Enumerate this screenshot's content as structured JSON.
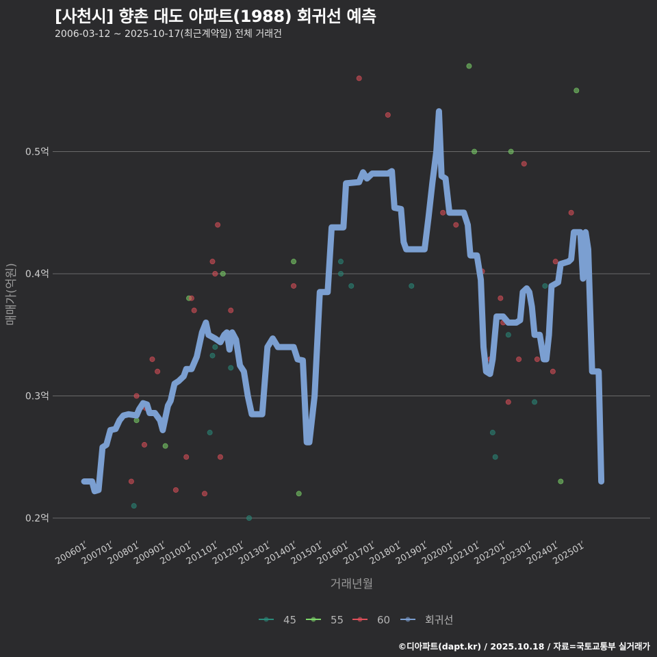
{
  "header": {
    "title": "[사천시] 향촌 대도 아파트(1988) 회귀선 예측",
    "subtitle": "2006-03-12 ~ 2025-10-17(최근계약일) 전체 거래건"
  },
  "caption": "©디아파트(dapt.kr) / 2025.10.18 / 자료=국토교통부 실거래가",
  "colors": {
    "background": "#2b2b2d",
    "grid": "#6a6a6a",
    "s45": "#2a8a7a",
    "s55": "#7ed66a",
    "s60": "#e0505a",
    "regression": "#7b9fd1"
  },
  "chart_data": {
    "type": "line",
    "title": "[사천시] 향촌 대도 아파트(1988) 회귀선 예측",
    "subtitle": "2006-03-12 ~ 2025-10-17(최근계약일) 전체 거래건",
    "xlabel": "거래년월",
    "ylabel": "매매가(억원)",
    "ylim": [
      0.18,
      0.58
    ],
    "yticks": [
      0.2,
      0.3,
      0.4,
      0.5
    ],
    "ytick_labels": [
      "0.2억",
      "0.3억",
      "0.4억",
      "0.5억"
    ],
    "xticks": [
      "200601",
      "200701",
      "200801",
      "200901",
      "201001",
      "201101",
      "201201",
      "201301",
      "201401",
      "201501",
      "201601",
      "201701",
      "201801",
      "201901",
      "202001",
      "202101",
      "202201",
      "202301",
      "202401",
      "202501"
    ],
    "legend": [
      "45",
      "55",
      "60",
      "회귀선"
    ],
    "legend_position": "bottom",
    "grid": true,
    "series": [
      {
        "name": "45",
        "type": "scatter",
        "points": [
          [
            2007.9,
            0.21
          ],
          [
            2010.8,
            0.27
          ],
          [
            2010.9,
            0.333
          ],
          [
            2011.0,
            0.34
          ],
          [
            2011.6,
            0.323
          ],
          [
            2012.3,
            0.2
          ],
          [
            2015.8,
            0.41
          ],
          [
            2015.8,
            0.4
          ],
          [
            2016.2,
            0.39
          ],
          [
            2018.5,
            0.39
          ],
          [
            2021.6,
            0.27
          ],
          [
            2021.7,
            0.25
          ],
          [
            2022.2,
            0.35
          ],
          [
            2023.2,
            0.295
          ],
          [
            2023.6,
            0.39
          ]
        ]
      },
      {
        "name": "55",
        "type": "scatter",
        "points": [
          [
            2008.0,
            0.28
          ],
          [
            2009.1,
            0.259
          ],
          [
            2010.0,
            0.38
          ],
          [
            2011.3,
            0.4
          ],
          [
            2014.0,
            0.41
          ],
          [
            2014.2,
            0.22
          ],
          [
            2020.7,
            0.57
          ],
          [
            2020.9,
            0.5
          ],
          [
            2022.3,
            0.5
          ],
          [
            2024.2,
            0.23
          ],
          [
            2024.8,
            0.55
          ]
        ]
      },
      {
        "name": "60",
        "type": "scatter",
        "points": [
          [
            2007.8,
            0.23
          ],
          [
            2008.0,
            0.3
          ],
          [
            2008.3,
            0.26
          ],
          [
            2008.35,
            0.29
          ],
          [
            2008.6,
            0.33
          ],
          [
            2008.8,
            0.32
          ],
          [
            2009.5,
            0.223
          ],
          [
            2009.9,
            0.25
          ],
          [
            2010.1,
            0.38
          ],
          [
            2010.2,
            0.37
          ],
          [
            2010.6,
            0.22
          ],
          [
            2010.9,
            0.41
          ],
          [
            2011.0,
            0.4
          ],
          [
            2011.1,
            0.44
          ],
          [
            2011.2,
            0.25
          ],
          [
            2011.6,
            0.37
          ],
          [
            2014.0,
            0.39
          ],
          [
            2016.5,
            0.56
          ],
          [
            2017.6,
            0.53
          ],
          [
            2019.7,
            0.45
          ],
          [
            2020.2,
            0.44
          ],
          [
            2021.2,
            0.402
          ],
          [
            2021.5,
            0.33
          ],
          [
            2021.9,
            0.38
          ],
          [
            2022.0,
            0.36
          ],
          [
            2022.2,
            0.295
          ],
          [
            2022.6,
            0.33
          ],
          [
            2022.8,
            0.49
          ],
          [
            2023.3,
            0.33
          ],
          [
            2023.9,
            0.32
          ],
          [
            2024.0,
            0.41
          ],
          [
            2024.6,
            0.45
          ]
        ]
      },
      {
        "name": "회귀선",
        "type": "line",
        "points": [
          [
            2006.0,
            0.23
          ],
          [
            2006.3,
            0.23
          ],
          [
            2006.4,
            0.222
          ],
          [
            2006.55,
            0.223
          ],
          [
            2006.7,
            0.258
          ],
          [
            2006.85,
            0.26
          ],
          [
            2007.0,
            0.272
          ],
          [
            2007.2,
            0.273
          ],
          [
            2007.35,
            0.28
          ],
          [
            2007.5,
            0.284
          ],
          [
            2007.7,
            0.285
          ],
          [
            2008.0,
            0.284
          ],
          [
            2008.1,
            0.289
          ],
          [
            2008.25,
            0.294
          ],
          [
            2008.4,
            0.293
          ],
          [
            2008.5,
            0.286
          ],
          [
            2008.7,
            0.286
          ],
          [
            2008.9,
            0.28
          ],
          [
            2009.0,
            0.272
          ],
          [
            2009.1,
            0.282
          ],
          [
            2009.2,
            0.292
          ],
          [
            2009.3,
            0.296
          ],
          [
            2009.45,
            0.31
          ],
          [
            2009.6,
            0.312
          ],
          [
            2009.8,
            0.316
          ],
          [
            2009.9,
            0.322
          ],
          [
            2010.1,
            0.322
          ],
          [
            2010.3,
            0.332
          ],
          [
            2010.5,
            0.352
          ],
          [
            2010.65,
            0.36
          ],
          [
            2010.75,
            0.35
          ],
          [
            2011.0,
            0.347
          ],
          [
            2011.2,
            0.344
          ],
          [
            2011.35,
            0.35
          ],
          [
            2011.45,
            0.352
          ],
          [
            2011.55,
            0.338
          ],
          [
            2011.65,
            0.352
          ],
          [
            2011.8,
            0.346
          ],
          [
            2011.95,
            0.325
          ],
          [
            2012.1,
            0.32
          ],
          [
            2012.25,
            0.3
          ],
          [
            2012.4,
            0.285
          ],
          [
            2012.8,
            0.285
          ],
          [
            2013.0,
            0.34
          ],
          [
            2013.2,
            0.347
          ],
          [
            2013.4,
            0.34
          ],
          [
            2014.0,
            0.34
          ],
          [
            2014.15,
            0.33
          ],
          [
            2014.35,
            0.329
          ],
          [
            2014.5,
            0.262
          ],
          [
            2014.6,
            0.262
          ],
          [
            2014.8,
            0.3
          ],
          [
            2015.0,
            0.385
          ],
          [
            2015.3,
            0.385
          ],
          [
            2015.45,
            0.438
          ],
          [
            2015.9,
            0.438
          ],
          [
            2016.0,
            0.474
          ],
          [
            2016.5,
            0.475
          ],
          [
            2016.65,
            0.483
          ],
          [
            2016.8,
            0.478
          ],
          [
            2017.0,
            0.482
          ],
          [
            2017.6,
            0.482
          ],
          [
            2017.75,
            0.484
          ],
          [
            2017.85,
            0.454
          ],
          [
            2018.1,
            0.453
          ],
          [
            2018.2,
            0.426
          ],
          [
            2018.3,
            0.42
          ],
          [
            2019.0,
            0.42
          ],
          [
            2019.15,
            0.446
          ],
          [
            2019.3,
            0.475
          ],
          [
            2019.45,
            0.5
          ],
          [
            2019.55,
            0.533
          ],
          [
            2019.65,
            0.48
          ],
          [
            2019.8,
            0.478
          ],
          [
            2019.95,
            0.45
          ],
          [
            2020.5,
            0.45
          ],
          [
            2020.65,
            0.44
          ],
          [
            2020.75,
            0.415
          ],
          [
            2021.0,
            0.415
          ],
          [
            2021.15,
            0.395
          ],
          [
            2021.25,
            0.34
          ],
          [
            2021.35,
            0.32
          ],
          [
            2021.5,
            0.318
          ],
          [
            2021.6,
            0.33
          ],
          [
            2021.75,
            0.365
          ],
          [
            2022.0,
            0.365
          ],
          [
            2022.2,
            0.36
          ],
          [
            2022.5,
            0.36
          ],
          [
            2022.65,
            0.362
          ],
          [
            2022.75,
            0.385
          ],
          [
            2022.9,
            0.388
          ],
          [
            2023.0,
            0.385
          ],
          [
            2023.1,
            0.373
          ],
          [
            2023.2,
            0.35
          ],
          [
            2023.4,
            0.35
          ],
          [
            2023.55,
            0.33
          ],
          [
            2023.65,
            0.33
          ],
          [
            2023.75,
            0.35
          ],
          [
            2023.85,
            0.39
          ],
          [
            2024.1,
            0.393
          ],
          [
            2024.2,
            0.408
          ],
          [
            2024.5,
            0.41
          ],
          [
            2024.6,
            0.412
          ],
          [
            2024.7,
            0.434
          ],
          [
            2024.95,
            0.434
          ],
          [
            2025.05,
            0.396
          ],
          [
            2025.15,
            0.434
          ],
          [
            2025.25,
            0.42
          ],
          [
            2025.4,
            0.32
          ],
          [
            2025.65,
            0.32
          ],
          [
            2025.75,
            0.23
          ]
        ]
      }
    ]
  },
  "axes": {
    "x_title": "거래년월",
    "y_title": "매매가(억원)"
  },
  "legend": {
    "items": [
      {
        "label": "45",
        "color": "#2a8a7a"
      },
      {
        "label": "55",
        "color": "#7ed66a"
      },
      {
        "label": "60",
        "color": "#e0505a"
      },
      {
        "label": "회귀선",
        "color": "#7b9fd1"
      }
    ]
  }
}
